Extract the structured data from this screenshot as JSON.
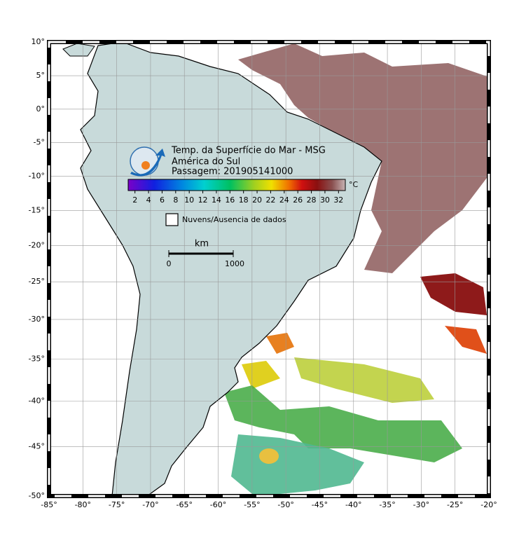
{
  "map": {
    "title_lines": [
      "Temp. da Superfície do Mar - MSG",
      "América do Sul",
      "Passagem: 201905141000"
    ],
    "colorbar": {
      "unit": "°C",
      "range": [
        1,
        33
      ],
      "ticks": [
        2,
        4,
        6,
        8,
        10,
        12,
        14,
        16,
        18,
        20,
        22,
        24,
        26,
        28,
        30,
        32
      ]
    },
    "legend": {
      "clouds": "Nuvens/Ausencia de dados"
    },
    "scale_bar": {
      "unit": "km",
      "labels": [
        "0",
        "1000"
      ]
    },
    "lonlim": [
      -85,
      -20
    ],
    "latlim": [
      -50,
      10
    ],
    "lon_ticks": [
      {
        "value": -85,
        "label": "-85°"
      },
      {
        "value": -80,
        "label": "-80°"
      },
      {
        "value": -75,
        "label": "-75°"
      },
      {
        "value": -70,
        "label": "-70°"
      },
      {
        "value": -65,
        "label": "-65°"
      },
      {
        "value": -60,
        "label": "-60°"
      },
      {
        "value": -55,
        "label": "-55°"
      },
      {
        "value": -50,
        "label": "-50°"
      },
      {
        "value": -45,
        "label": "-45°"
      },
      {
        "value": -40,
        "label": "-40°"
      },
      {
        "value": -35,
        "label": "-35°"
      },
      {
        "value": -30,
        "label": "-30°"
      },
      {
        "value": -25,
        "label": "-25°"
      },
      {
        "value": -20,
        "label": "-20°"
      }
    ],
    "lat_ticks": [
      {
        "value": 10,
        "label": "10°"
      },
      {
        "value": 5,
        "label": "5°"
      },
      {
        "value": 0,
        "label": "0°"
      },
      {
        "value": -5,
        "label": "-5°"
      },
      {
        "value": -10,
        "label": "-10°"
      },
      {
        "value": -15,
        "label": "-15°"
      },
      {
        "value": -20,
        "label": "-20°"
      },
      {
        "value": -25,
        "label": "-25°"
      },
      {
        "value": -30,
        "label": "-30°"
      },
      {
        "value": -35,
        "label": "-35°"
      },
      {
        "value": -40,
        "label": "-40°"
      },
      {
        "value": -45,
        "label": "-45°"
      },
      {
        "value": -50,
        "label": "-50°"
      }
    ]
  }
}
